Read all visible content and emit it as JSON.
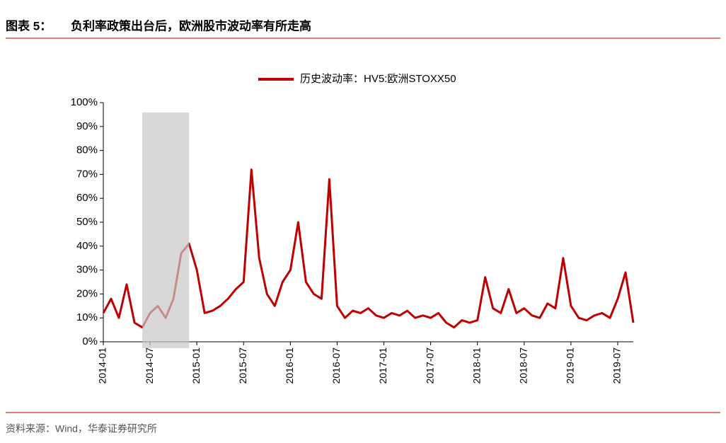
{
  "header": {
    "label": "图表 5：",
    "title": "负利率政策出台后，欧洲股市波动率有所走高"
  },
  "chart_data": {
    "type": "line",
    "x": [
      "2014-01",
      "2014-02",
      "2014-03",
      "2014-04",
      "2014-05",
      "2014-06",
      "2014-07",
      "2014-08",
      "2014-09",
      "2014-10",
      "2014-11",
      "2014-12",
      "2015-01",
      "2015-02",
      "2015-03",
      "2015-04",
      "2015-05",
      "2015-06",
      "2015-07",
      "2015-08",
      "2015-09",
      "2015-10",
      "2015-11",
      "2015-12",
      "2016-01",
      "2016-02",
      "2016-03",
      "2016-04",
      "2016-05",
      "2016-06",
      "2016-07",
      "2016-08",
      "2016-09",
      "2016-10",
      "2016-11",
      "2016-12",
      "2017-01",
      "2017-02",
      "2017-03",
      "2017-04",
      "2017-05",
      "2017-06",
      "2017-07",
      "2017-08",
      "2017-09",
      "2017-10",
      "2017-11",
      "2017-12",
      "2018-01",
      "2018-02",
      "2018-03",
      "2018-04",
      "2018-05",
      "2018-06",
      "2018-07",
      "2018-08",
      "2018-09",
      "2018-10",
      "2018-11",
      "2018-12",
      "2019-01",
      "2019-02",
      "2019-03",
      "2019-04",
      "2019-05",
      "2019-06",
      "2019-07",
      "2019-08",
      "2019-09"
    ],
    "series": [
      {
        "name": "历史波动率：HV5:欧洲STOXX50",
        "color": "#c00000",
        "values": [
          12,
          18,
          10,
          24,
          8,
          6,
          12,
          15,
          10,
          18,
          37,
          41,
          30,
          12,
          13,
          15,
          18,
          22,
          25,
          72,
          35,
          20,
          15,
          25,
          30,
          50,
          25,
          20,
          18,
          68,
          15,
          10,
          13,
          12,
          14,
          11,
          10,
          12,
          11,
          13,
          10,
          11,
          10,
          12,
          8,
          6,
          9,
          8,
          9,
          27,
          14,
          12,
          22,
          12,
          14,
          11,
          10,
          16,
          14,
          35,
          15,
          10,
          9,
          11,
          12,
          10,
          18,
          29,
          8
        ]
      }
    ],
    "xticks": [
      "2014-01",
      "2014-07",
      "2015-01",
      "2015-07",
      "2016-01",
      "2016-07",
      "2017-01",
      "2017-07",
      "2018-01",
      "2018-07",
      "2019-01",
      "2019-07"
    ],
    "xlim": [
      "2014-01",
      "2019-09"
    ],
    "shaded_range": [
      "2014-06",
      "2014-12"
    ],
    "ylim": [
      0,
      100
    ],
    "yticks": [
      {
        "value": 0,
        "label": "0%"
      },
      {
        "value": 10,
        "label": "10%"
      },
      {
        "value": 20,
        "label": "20%"
      },
      {
        "value": 30,
        "label": "30%"
      },
      {
        "value": 40,
        "label": "40%"
      },
      {
        "value": 50,
        "label": "50%"
      },
      {
        "value": 60,
        "label": "60%"
      },
      {
        "value": 70,
        "label": "70%"
      },
      {
        "value": 80,
        "label": "80%"
      },
      {
        "value": 90,
        "label": "90%"
      },
      {
        "value": 100,
        "label": "100%"
      }
    ],
    "legend": "top"
  },
  "footer": {
    "source": "资料来源：Wind，华泰证券研究所"
  }
}
